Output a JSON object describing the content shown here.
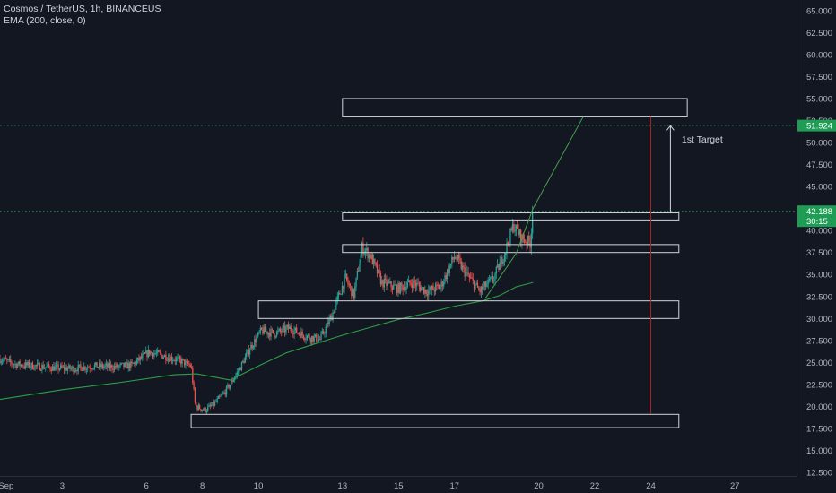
{
  "header": {
    "symbol_line": "Cosmos / TetherUS, 1h, BINANCEUS",
    "indicator_line": "EMA (200, close, 0)"
  },
  "colors": {
    "background": "#131722",
    "up": "#26a69a",
    "down": "#ef5350",
    "ema": "#2e9e45",
    "zone_border": "#d1d4dc",
    "target_line": "#b71c1c",
    "price_badge": "#1f9d55"
  },
  "chart_data": {
    "type": "candlestick",
    "symbol": "Cosmos / TetherUS",
    "interval": "1h",
    "exchange": "BINANCEUS",
    "x_ticks": [
      "Sep",
      "3",
      "6",
      "8",
      "10",
      "13",
      "15",
      "17",
      "20",
      "22",
      "24",
      "27"
    ],
    "x_tick_days": [
      1,
      3,
      6,
      8,
      10,
      13,
      15,
      17,
      20,
      22,
      24,
      27
    ],
    "x_range_days": [
      0.78,
      29.2
    ],
    "y_ticks": [
      "65.000",
      "62.500",
      "60.000",
      "57.500",
      "55.000",
      "52.500",
      "50.000",
      "47.500",
      "45.000",
      "42.500",
      "40.000",
      "37.500",
      "35.000",
      "32.500",
      "30.000",
      "27.500",
      "25.000",
      "22.500",
      "20.000",
      "17.500",
      "15.000",
      "12.500"
    ],
    "ylim": [
      12.1,
      66.2
    ],
    "price_path": [
      [
        0.78,
        25.4
      ],
      [
        1.3,
        24.8
      ],
      [
        2.0,
        24.6
      ],
      [
        2.7,
        24.4
      ],
      [
        3.4,
        24.3
      ],
      [
        4.1,
        24.6
      ],
      [
        4.8,
        24.5
      ],
      [
        5.5,
        24.7
      ],
      [
        6.1,
        26.2
      ],
      [
        6.7,
        25.7
      ],
      [
        7.2,
        25.2
      ],
      [
        7.6,
        24.6
      ],
      [
        7.75,
        20.0
      ],
      [
        8.1,
        19.6
      ],
      [
        8.4,
        20.2
      ],
      [
        8.8,
        21.6
      ],
      [
        9.3,
        24.1
      ],
      [
        9.7,
        26.6
      ],
      [
        10.1,
        28.6
      ],
      [
        10.6,
        28.3
      ],
      [
        11.1,
        28.9
      ],
      [
        11.6,
        28.1
      ],
      [
        12.2,
        27.6
      ],
      [
        12.6,
        30.2
      ],
      [
        13.1,
        34.6
      ],
      [
        13.4,
        32.6
      ],
      [
        13.7,
        38.1
      ],
      [
        14.0,
        37.1
      ],
      [
        14.4,
        34.1
      ],
      [
        15.0,
        33.4
      ],
      [
        15.5,
        34.1
      ],
      [
        16.0,
        33.1
      ],
      [
        16.5,
        33.6
      ],
      [
        17.0,
        37.1
      ],
      [
        17.4,
        35.1
      ],
      [
        17.9,
        33.1
      ],
      [
        18.4,
        34.6
      ],
      [
        18.8,
        37.6
      ],
      [
        19.1,
        40.6
      ],
      [
        19.4,
        39.1
      ],
      [
        19.7,
        38.6
      ],
      [
        19.8,
        42.2
      ]
    ],
    "ema200_path": [
      [
        0.78,
        20.8
      ],
      [
        3.0,
        21.9
      ],
      [
        5.0,
        22.7
      ],
      [
        7.0,
        23.6
      ],
      [
        7.8,
        23.7
      ],
      [
        9.0,
        23.0
      ],
      [
        10.0,
        24.6
      ],
      [
        11.0,
        26.1
      ],
      [
        12.0,
        27.1
      ],
      [
        13.0,
        28.1
      ],
      [
        14.0,
        29.0
      ],
      [
        15.0,
        29.9
      ],
      [
        16.0,
        30.6
      ],
      [
        17.0,
        31.4
      ],
      [
        18.0,
        32.0
      ],
      [
        18.6,
        32.6
      ],
      [
        19.2,
        33.6
      ],
      [
        19.8,
        34.1
      ]
    ],
    "zones": [
      {
        "x0": 13.0,
        "x1": 25.3,
        "y0": 53.0,
        "y1": 55.0
      },
      {
        "x0": 13.0,
        "x1": 25.0,
        "y0": 41.2,
        "y1": 42.0
      },
      {
        "x0": 13.0,
        "x1": 25.0,
        "y0": 37.5,
        "y1": 38.4
      },
      {
        "x0": 10.0,
        "x1": 25.0,
        "y0": 30.0,
        "y1": 32.0
      },
      {
        "x0": 7.6,
        "x1": 25.0,
        "y0": 17.6,
        "y1": 19.1
      }
    ],
    "trend_lines": [
      {
        "points": [
          [
            18.1,
            32.3
          ],
          [
            19.2,
            37.4
          ],
          [
            19.8,
            42.5
          ],
          [
            21.6,
            53.0
          ]
        ]
      }
    ],
    "target_vertical": {
      "x": 24.0,
      "y0": 19.2,
      "y1": 53.0
    },
    "target_arrow": {
      "x": 24.7,
      "y0": 42.0,
      "y1": 51.9
    },
    "annotations": [
      {
        "text": "1st Target",
        "x": 25.1,
        "y": 50.4
      }
    ],
    "current_price": {
      "label": "42.188",
      "value": 42.188,
      "countdown": "30:15"
    },
    "target_price": {
      "label": "51.924",
      "value": 51.924
    }
  }
}
